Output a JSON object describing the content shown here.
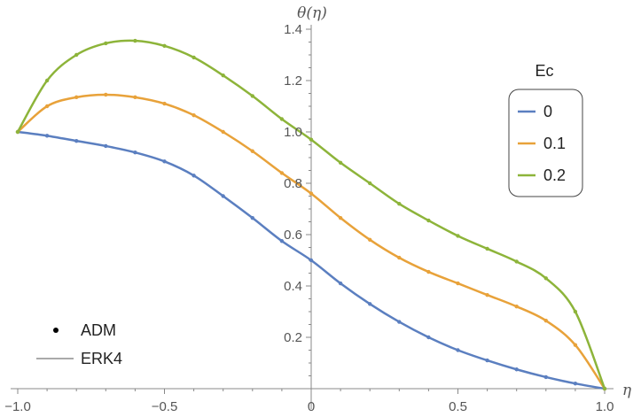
{
  "chart_data": {
    "type": "line",
    "xlabel": "η",
    "ylabel": "θ(η)",
    "xlim": [
      -1.0,
      1.0
    ],
    "ylim": [
      0.0,
      1.45
    ],
    "x_ticks": [
      "−1.0",
      "−0.5",
      "0",
      "0.5",
      "1.0"
    ],
    "y_ticks": [
      "0.2",
      "0.4",
      "0.6",
      "0.8",
      "1.0",
      "1.2",
      "1.4"
    ],
    "legend": {
      "title": "Ec",
      "placement": "top-right",
      "entries": [
        "0",
        "0.1",
        "0.2"
      ]
    },
    "method_legend": {
      "placement": "bottom-left",
      "dot_label": "ADM",
      "line_label": "ERK4"
    },
    "colors": {
      "series": [
        "#5b7fc0",
        "#e8a23a",
        "#8db43a"
      ],
      "axis": "#888888",
      "dot": "#000000"
    },
    "series": [
      {
        "name": "0",
        "x": [
          -1.0,
          -0.9,
          -0.8,
          -0.7,
          -0.6,
          -0.5,
          -0.4,
          -0.3,
          -0.2,
          -0.1,
          0.0,
          0.1,
          0.2,
          0.3,
          0.4,
          0.5,
          0.6,
          0.7,
          0.8,
          0.9,
          1.0
        ],
        "y": [
          1.0,
          0.985,
          0.965,
          0.945,
          0.92,
          0.885,
          0.83,
          0.75,
          0.665,
          0.575,
          0.5,
          0.41,
          0.33,
          0.26,
          0.2,
          0.15,
          0.11,
          0.075,
          0.045,
          0.02,
          0.0
        ]
      },
      {
        "name": "0.1",
        "x": [
          -1.0,
          -0.9,
          -0.8,
          -0.7,
          -0.6,
          -0.5,
          -0.4,
          -0.3,
          -0.2,
          -0.1,
          0.0,
          0.1,
          0.2,
          0.3,
          0.4,
          0.5,
          0.6,
          0.7,
          0.8,
          0.9,
          1.0
        ],
        "y": [
          1.0,
          1.1,
          1.135,
          1.145,
          1.135,
          1.11,
          1.065,
          1.0,
          0.925,
          0.84,
          0.76,
          0.665,
          0.58,
          0.51,
          0.455,
          0.41,
          0.365,
          0.32,
          0.265,
          0.17,
          0.0
        ]
      },
      {
        "name": "0.2",
        "x": [
          -1.0,
          -0.9,
          -0.8,
          -0.7,
          -0.6,
          -0.5,
          -0.4,
          -0.3,
          -0.2,
          -0.1,
          0.0,
          0.1,
          0.2,
          0.3,
          0.4,
          0.5,
          0.6,
          0.7,
          0.8,
          0.9,
          1.0
        ],
        "y": [
          1.0,
          1.2,
          1.3,
          1.345,
          1.355,
          1.335,
          1.29,
          1.22,
          1.14,
          1.05,
          0.97,
          0.88,
          0.8,
          0.72,
          0.655,
          0.595,
          0.545,
          0.495,
          0.43,
          0.3,
          0.0
        ]
      }
    ]
  }
}
